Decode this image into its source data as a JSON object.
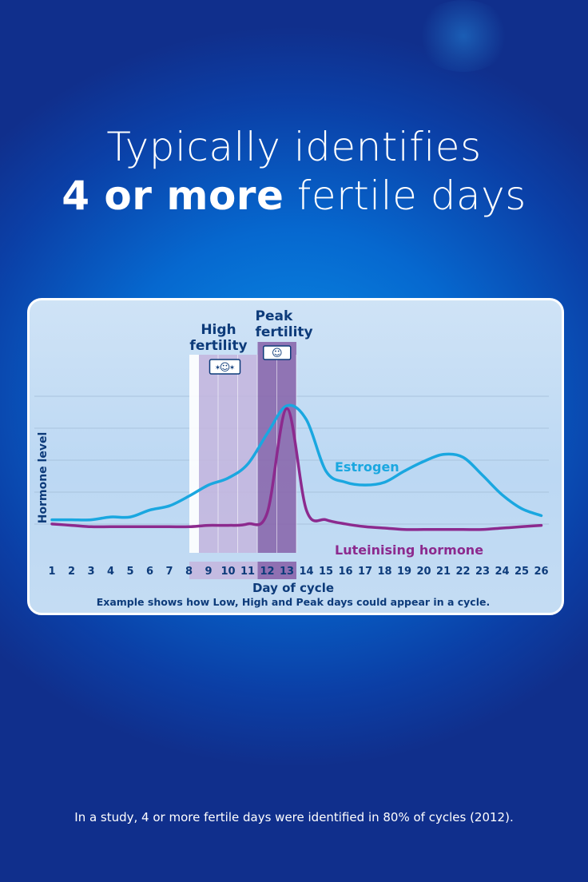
{
  "headline": {
    "line1": "Typically identifies",
    "line2_bold": "4 or more",
    "line2_rest": " fertile days"
  },
  "colors": {
    "estrogen": "#1aa7e0",
    "luteinising": "#8c2a8e",
    "label_dark": "#0d3b7a",
    "high_band": "#c4b5dd",
    "peak_band": "#8a68ad"
  },
  "chart_data": {
    "type": "line",
    "title": "",
    "xlabel": "Day of cycle",
    "ylabel": "Hormone level",
    "x": [
      1,
      2,
      3,
      4,
      5,
      6,
      7,
      8,
      9,
      10,
      11,
      12,
      13,
      14,
      15,
      16,
      17,
      18,
      19,
      20,
      21,
      22,
      23,
      24,
      25,
      26
    ],
    "xlim": [
      1,
      26
    ],
    "ylim": [
      0,
      100
    ],
    "grid": true,
    "series": [
      {
        "name": "Estrogen",
        "color": "#1aa7e0",
        "values": [
          10,
          10,
          10,
          12,
          12,
          17,
          20,
          27,
          35,
          40,
          50,
          72,
          92,
          82,
          45,
          37,
          35,
          37,
          45,
          52,
          57,
          55,
          42,
          28,
          18,
          13
        ]
      },
      {
        "name": "Luteinising hormone",
        "color": "#8c2a8e",
        "values": [
          7,
          6,
          5,
          5,
          5,
          5,
          5,
          5,
          6,
          6,
          7,
          15,
          90,
          17,
          10,
          7,
          5,
          4,
          3,
          3,
          3,
          3,
          3,
          4,
          5,
          6
        ]
      }
    ],
    "annotations": {
      "high_fertility": {
        "label_line1": "High",
        "label_line2": "fertility",
        "days": [
          9,
          10,
          11
        ]
      },
      "peak_fertility": {
        "label_line1": "Peak",
        "label_line2": "fertility",
        "days": [
          12,
          13
        ]
      },
      "high_icon": "smiley-with-rays-icon",
      "peak_icon": "smiley-icon"
    },
    "caption": "Example shows how Low, High and Peak days could appear in a cycle."
  },
  "footer": "In a study, 4 or more fertile days were identified in 80% of cycles (2012)."
}
